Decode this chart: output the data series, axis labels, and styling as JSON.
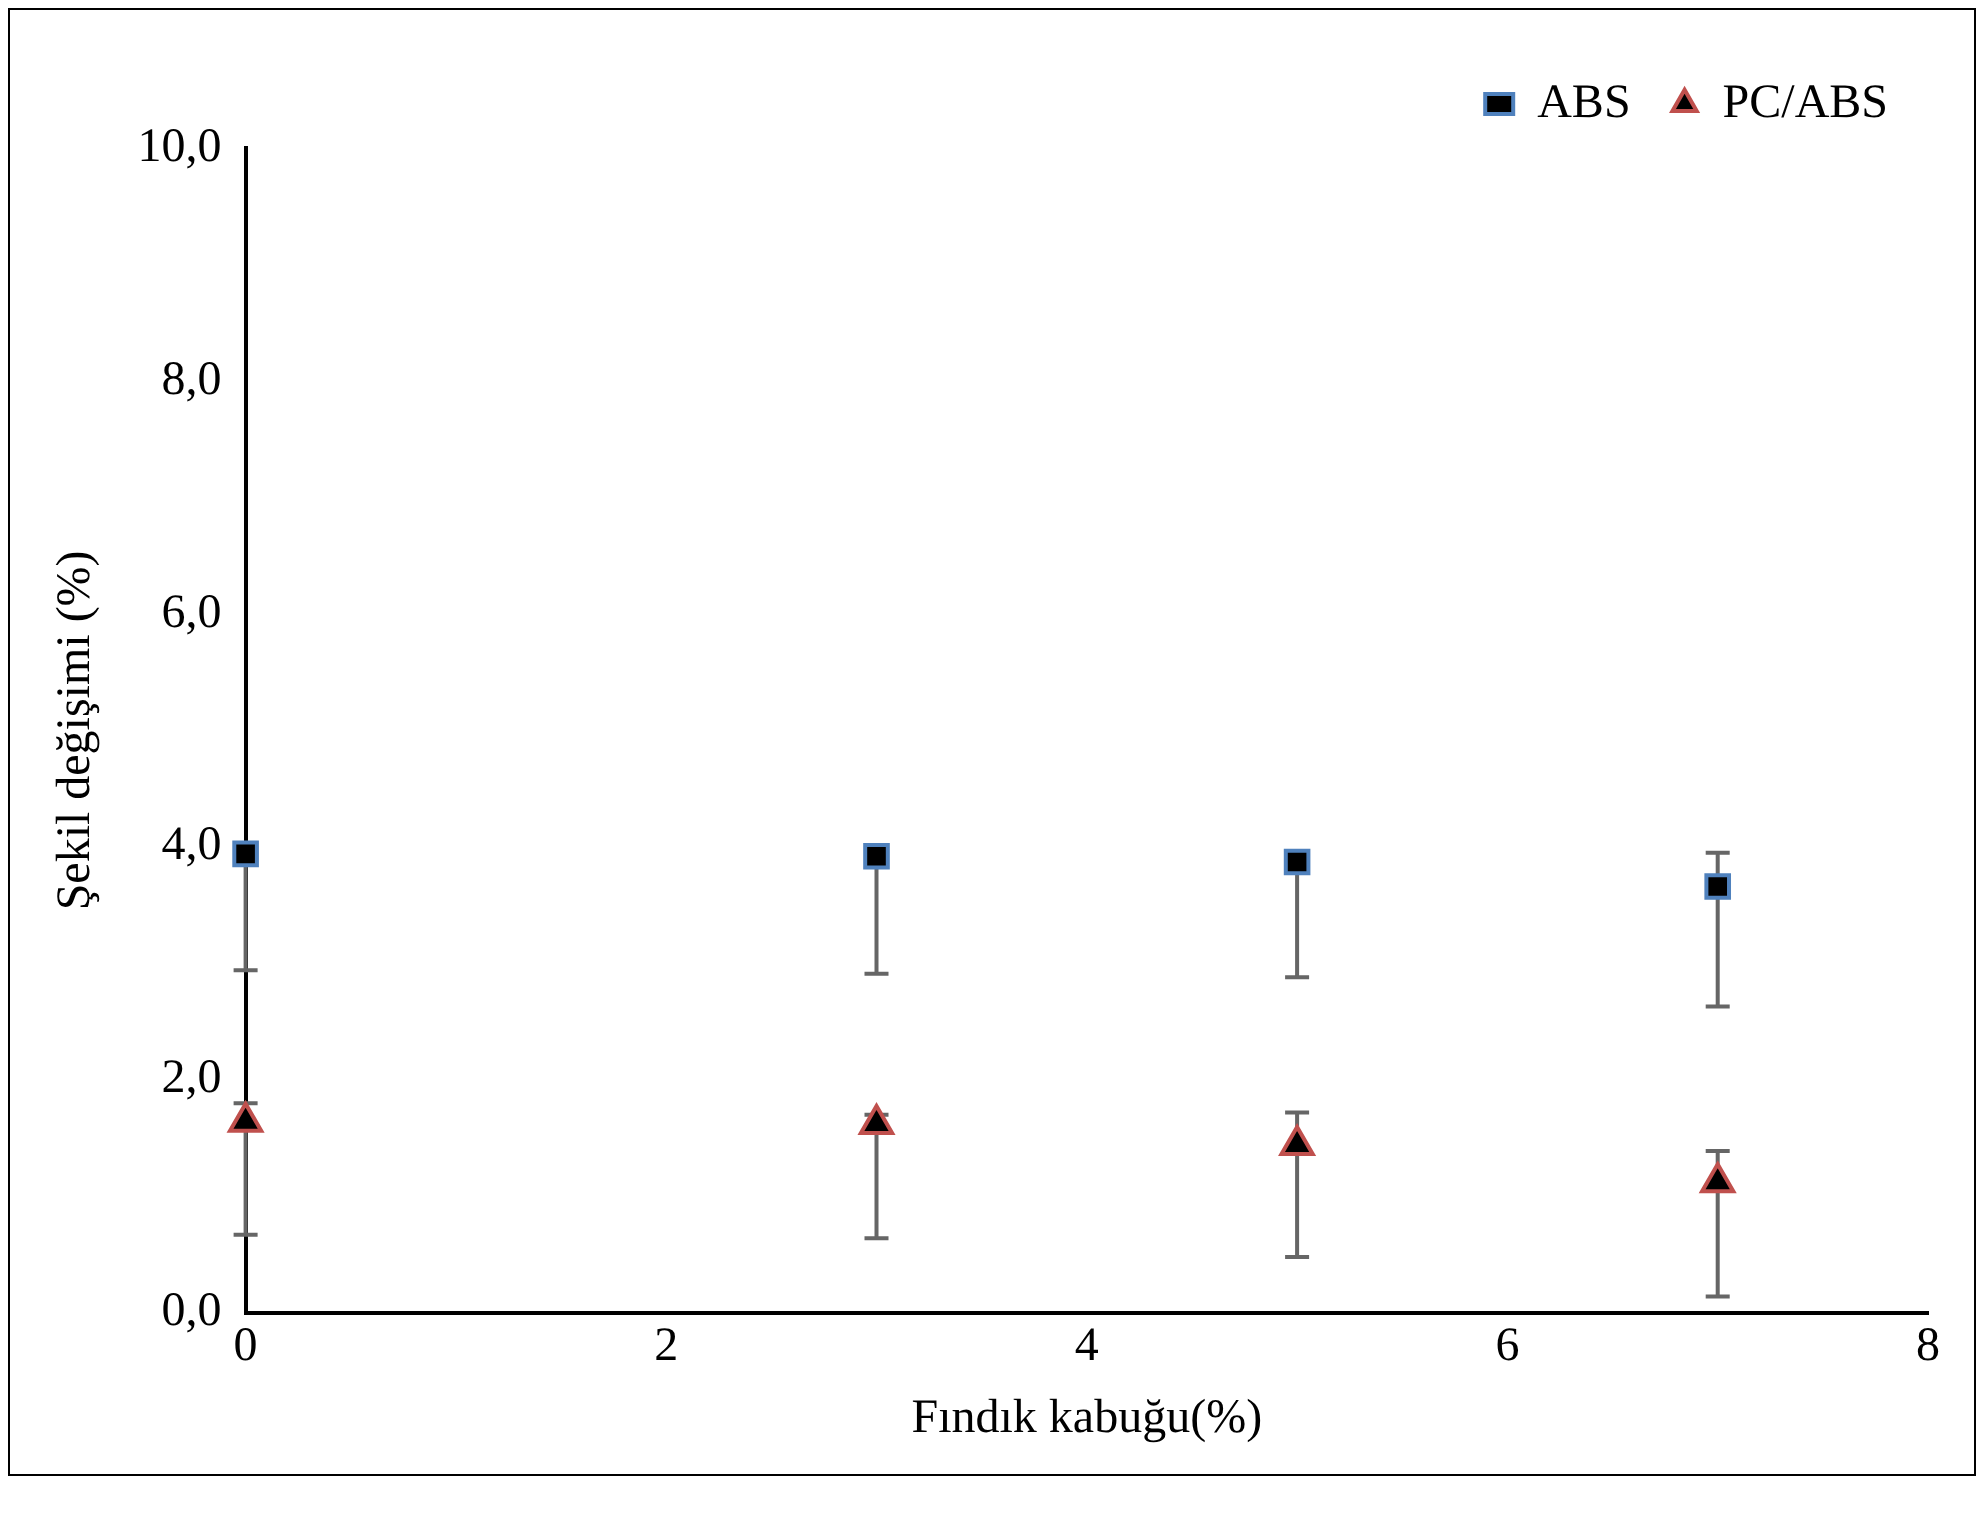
{
  "chart_data": {
    "type": "scatter",
    "xlabel": "Fındık kabuğu(%)",
    "ylabel": "Şekil değişimi (%)",
    "xlim": [
      0,
      8
    ],
    "xticks": [
      0,
      2,
      4,
      6,
      8
    ],
    "ylim": [
      0,
      10
    ],
    "yticks": [
      {
        "value": 0,
        "label": "0,0"
      },
      {
        "value": 2,
        "label": "2,0"
      },
      {
        "value": 4,
        "label": "4,0"
      },
      {
        "value": 6,
        "label": "6,0"
      },
      {
        "value": 8,
        "label": "8,0"
      },
      {
        "value": 10,
        "label": "10,0"
      }
    ],
    "grid": false,
    "legend": "top right",
    "series": [
      {
        "name": "ABS",
        "color": "#4f81bd",
        "marker": "square",
        "x": [
          0,
          3,
          5,
          7
        ],
        "values": [
          3.94,
          3.92,
          3.87,
          3.66
        ],
        "errors": [
          [
            2.94,
            3.94
          ],
          [
            2.91,
            3.92
          ],
          [
            2.88,
            3.87
          ],
          [
            2.63,
            3.95
          ]
        ]
      },
      {
        "name": "PC/ABS",
        "color": "#c0504d",
        "marker": "triangle",
        "x": [
          0,
          3,
          5,
          7
        ],
        "values": [
          1.64,
          1.62,
          1.44,
          1.12
        ],
        "errors": [
          [
            0.67,
            1.8
          ],
          [
            0.64,
            1.7
          ],
          [
            0.48,
            1.72
          ],
          [
            0.14,
            1.39
          ]
        ]
      }
    ]
  }
}
